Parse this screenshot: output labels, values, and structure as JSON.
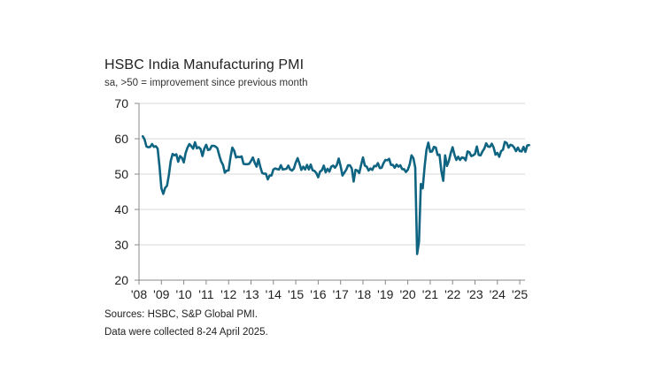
{
  "chart_data": {
    "type": "line",
    "title": "HSBC India Manufacturing PMI",
    "subtitle": "sa, >50 = improvement since previous month",
    "xlabel": "",
    "ylabel": "",
    "ylim": [
      20,
      70
    ],
    "yticks": [
      20,
      30,
      40,
      50,
      60,
      70
    ],
    "xlim": [
      "2008-01",
      "2025-04"
    ],
    "xticks": [
      "'08",
      "'09",
      "'10",
      "'11",
      "'12",
      "'13",
      "'14",
      "'15",
      "'16",
      "'17",
      "'18",
      "'19",
      "'20",
      "'21",
      "'22",
      "'23",
      "'24",
      "'25"
    ],
    "grid": "horizontal",
    "line_color": "#0f6482",
    "series": [
      {
        "name": "HSBC India Manufacturing PMI",
        "start": "2008-03",
        "frequency": "monthly",
        "values": [
          60.7,
          59.8,
          57.8,
          57.6,
          57.7,
          58.5,
          57.7,
          57.9,
          57.2,
          52.1,
          46.0,
          44.4,
          46.1,
          46.7,
          49.7,
          53.7,
          55.7,
          55.3,
          55.6,
          53.5,
          55.1,
          54.6,
          53.3,
          56.0,
          57.5,
          58.5,
          57.9,
          57.2,
          59.0,
          57.3,
          57.6,
          57.1,
          55.1,
          57.2,
          58.3,
          56.8,
          57.0,
          58.0,
          58.0,
          57.8,
          57.3,
          55.3,
          53.6,
          52.6,
          50.4,
          51.0,
          51.0,
          54.7,
          57.5,
          56.6,
          54.7,
          54.9,
          54.8,
          55.0,
          52.9,
          52.8,
          52.8,
          52.9,
          53.7,
          54.7,
          53.2,
          52.1,
          54.2,
          52.0,
          50.3,
          50.1,
          50.1,
          48.5,
          49.6,
          49.6,
          51.3,
          51.6,
          51.4,
          51.3,
          52.5,
          51.3,
          51.4,
          51.5,
          52.4,
          51.3,
          51.0,
          51.6,
          53.3,
          54.5,
          52.9,
          51.2,
          52.1,
          51.3,
          52.6,
          51.3,
          52.7,
          51.1,
          50.9,
          50.3,
          49.1,
          50.7,
          51.1,
          52.4,
          50.5,
          51.5,
          50.7,
          52.1,
          52.4,
          51.8,
          52.6,
          54.4,
          52.3,
          49.6,
          50.4,
          51.2,
          52.5,
          52.5,
          51.6,
          47.9,
          51.2,
          51.0,
          50.3,
          52.6,
          54.7,
          52.4,
          52.1,
          51.0,
          51.6,
          51.2,
          52.3,
          52.2,
          53.1,
          51.7,
          51.8,
          53.1,
          54.0,
          53.9,
          54.3,
          52.6,
          52.6,
          51.8,
          52.7,
          52.1,
          52.5,
          51.4,
          51.4,
          50.6,
          51.2,
          52.7,
          55.3,
          54.5,
          51.8,
          27.4,
          30.8,
          47.2,
          46.0,
          52.0,
          56.8,
          58.9,
          56.3,
          56.4,
          57.7,
          57.5,
          55.4,
          55.5,
          50.8,
          48.1,
          55.3,
          52.3,
          53.7,
          55.9,
          57.6,
          55.5,
          54.0,
          54.9,
          54.0,
          54.7,
          54.6,
          53.9,
          56.4,
          56.2,
          55.1,
          55.3,
          55.7,
          57.8,
          55.4,
          55.3,
          56.4,
          57.2,
          58.7,
          57.8,
          57.7,
          58.6,
          57.5,
          55.5,
          56.0,
          54.9,
          56.5,
          56.9,
          59.1,
          58.8,
          57.5,
          58.3,
          58.1,
          57.5,
          56.5,
          57.5,
          56.5,
          56.4,
          57.7,
          56.3,
          58.1,
          58.2
        ]
      }
    ]
  },
  "footer": {
    "sources": "Sources: HSBC, S&P Global PMI.",
    "collected": "Data were collected 8-24 April 2025."
  }
}
